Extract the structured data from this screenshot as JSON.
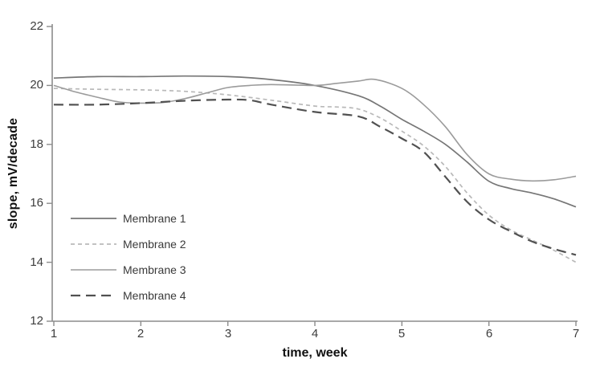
{
  "chart_data": {
    "type": "line",
    "title": "",
    "xlabel": "time, week",
    "ylabel": "slope, mV/decade",
    "grid": false,
    "legend_position": "inside lower-left",
    "axis_color": "#8c8c8c",
    "background_color": "#ffffff",
    "x_axis": {
      "min": 1,
      "max": 7,
      "tick_labels": [
        "1",
        "2",
        "3",
        "4",
        "5",
        "6",
        "7"
      ]
    },
    "y_axis": {
      "min": 12,
      "max": 22,
      "tick_labels": [
        "22",
        "20",
        "18",
        "16",
        "14",
        "12"
      ]
    },
    "series": [
      {
        "name": "Membrane 1",
        "color": "#767676",
        "line_style": "solid",
        "stroke_width": 1.7,
        "x": [
          1,
          1.5,
          2,
          2.5,
          3,
          3.5,
          4,
          4.5,
          4.75,
          5,
          5.25,
          5.5,
          5.75,
          6,
          6.25,
          6.5,
          6.75,
          7
        ],
        "y": [
          20.25,
          20.3,
          20.3,
          20.32,
          20.3,
          20.2,
          20.0,
          19.65,
          19.3,
          18.85,
          18.45,
          18.0,
          17.4,
          16.75,
          16.5,
          16.35,
          16.15,
          15.88
        ]
      },
      {
        "name": "Membrane 2",
        "color": "#b9b9b9",
        "line_style": "dashed",
        "stroke_width": 1.7,
        "x": [
          1,
          1.5,
          2,
          2.5,
          3,
          3.5,
          4,
          4.25,
          4.5,
          4.75,
          5,
          5.25,
          5.5,
          5.75,
          6,
          6.25,
          6.5,
          6.75,
          7
        ],
        "y": [
          19.9,
          19.87,
          19.85,
          19.8,
          19.68,
          19.5,
          19.3,
          19.27,
          19.2,
          18.9,
          18.45,
          17.95,
          17.25,
          16.35,
          15.6,
          15.1,
          14.75,
          14.4,
          14.0
        ]
      },
      {
        "name": "Membrane 3",
        "color": "#9b9b9b",
        "line_style": "solid",
        "stroke_width": 1.6,
        "x": [
          1,
          1.25,
          1.5,
          1.75,
          2,
          2.25,
          2.5,
          2.75,
          3,
          3.25,
          3.5,
          4,
          4.25,
          4.5,
          4.7,
          5,
          5.25,
          5.5,
          5.75,
          6,
          6.25,
          6.5,
          6.75,
          7
        ],
        "y": [
          20.0,
          19.78,
          19.6,
          19.44,
          19.4,
          19.42,
          19.55,
          19.74,
          19.93,
          20.0,
          20.03,
          20.0,
          20.07,
          20.15,
          20.2,
          19.9,
          19.35,
          18.6,
          17.65,
          17.0,
          16.82,
          16.76,
          16.8,
          16.92
        ]
      },
      {
        "name": "Membrane 4",
        "color": "#515151",
        "line_style": "long-dashed",
        "stroke_width": 2.2,
        "x": [
          1,
          1.5,
          2,
          2.5,
          3,
          3.25,
          3.5,
          4,
          4.5,
          4.75,
          5,
          5.25,
          5.5,
          5.75,
          6,
          6.25,
          6.5,
          6.75,
          7
        ],
        "y": [
          19.35,
          19.35,
          19.4,
          19.48,
          19.52,
          19.5,
          19.35,
          19.1,
          18.95,
          18.6,
          18.2,
          17.75,
          16.9,
          16.05,
          15.45,
          15.05,
          14.7,
          14.45,
          14.25
        ]
      }
    ]
  }
}
